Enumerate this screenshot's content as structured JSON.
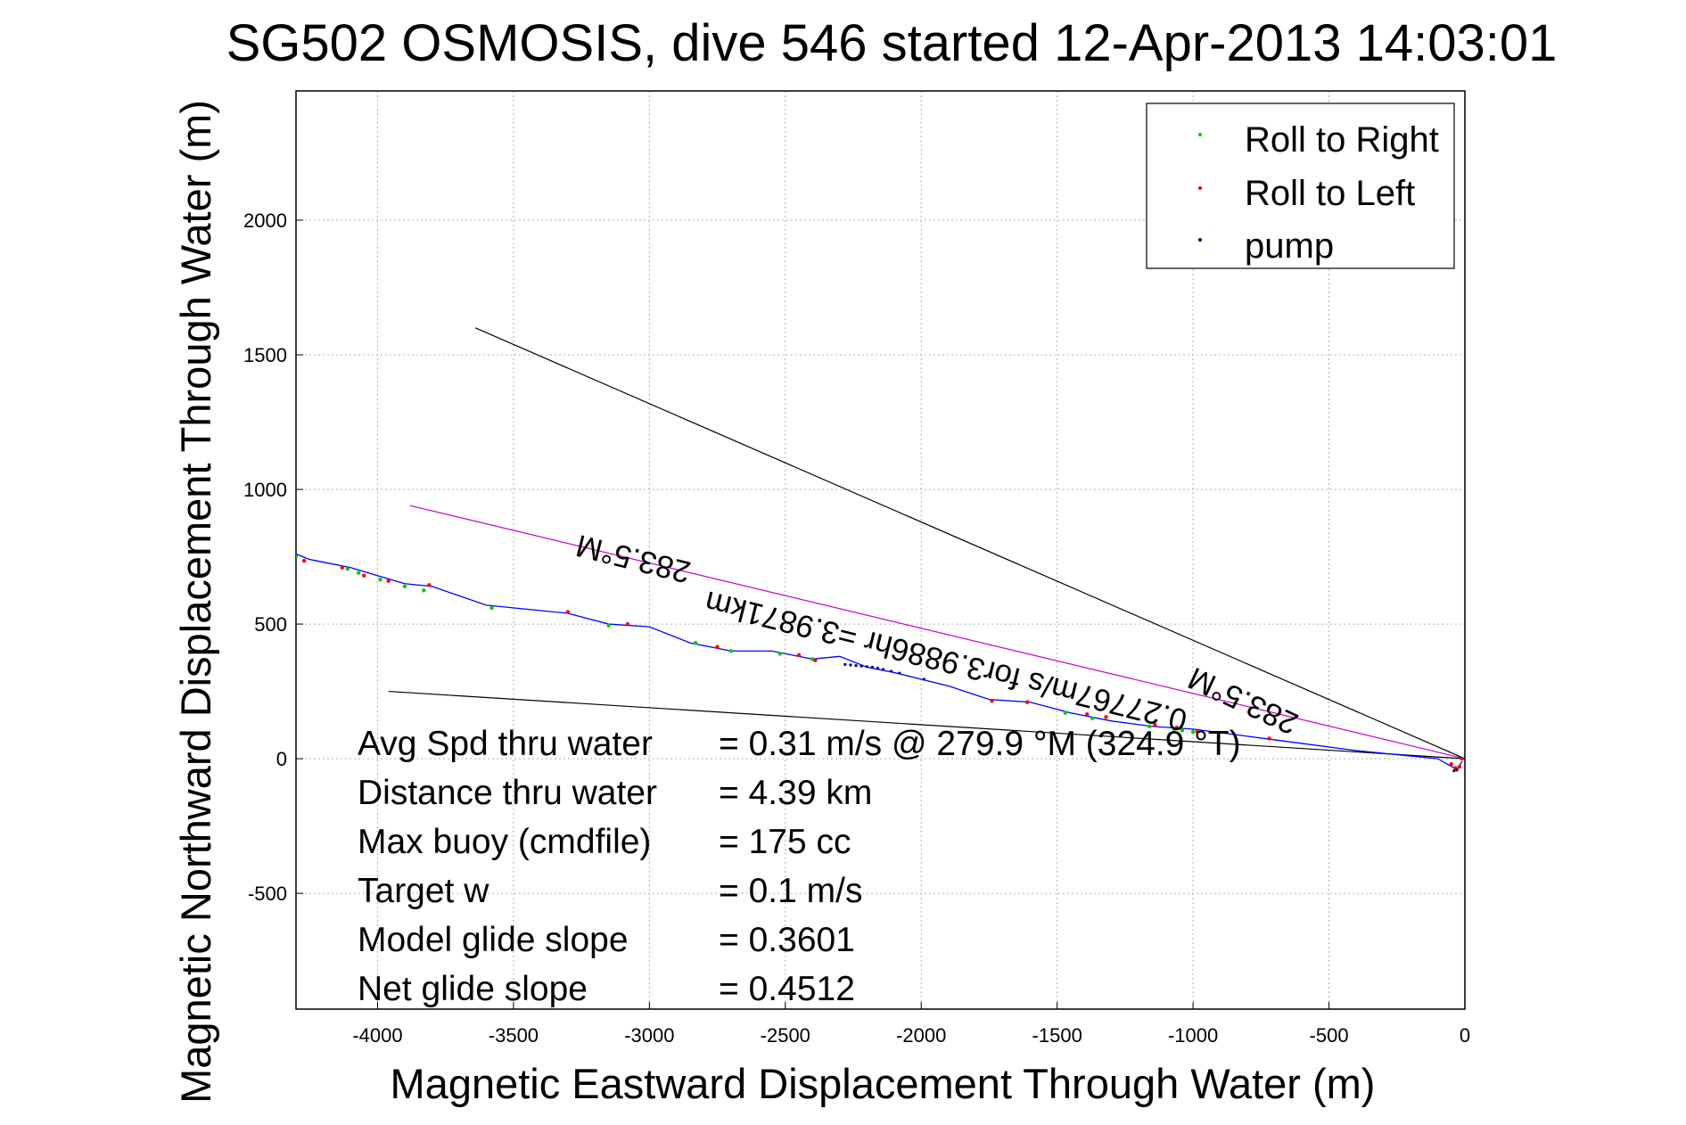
{
  "chart_data": {
    "type": "scatter",
    "title": "SG502 OSMOSIS, dive 546 started 12-Apr-2013 14:03:01",
    "xlabel": "Magnetic Eastward Displacement Through Water (m)",
    "ylabel": "Magnetic Northward Displacement Through Water (m)",
    "xlim": [
      -4300,
      0
    ],
    "ylim": [
      -930,
      2480
    ],
    "xticks": [
      -4000,
      -3500,
      -3000,
      -2500,
      -2000,
      -1500,
      -1000,
      -500,
      0
    ],
    "yticks": [
      -500,
      0,
      500,
      1000,
      1500,
      2000
    ],
    "grid": true,
    "legend_position": "top-right",
    "legend": [
      "Roll to Right",
      "Roll to Left",
      "pump"
    ],
    "colors": {
      "track": "#0000ff",
      "roll_right": "#00cc00",
      "roll_left": "#ff0000",
      "pump": "#000080",
      "heading_line": "#cc00cc",
      "cone_line": "#000000",
      "grid": "#b0b0b0"
    },
    "series": [
      {
        "name": "track",
        "x": [
          -4300,
          -4250,
          -4100,
          -4000,
          -3900,
          -3800,
          -3600,
          -3300,
          -3150,
          -3000,
          -2850,
          -2700,
          -2550,
          -2400,
          -2300,
          -2200,
          -2100,
          -1900,
          -1750,
          -1600,
          -1450,
          -1300,
          -1150,
          -1000,
          -700,
          -400,
          -100,
          -30,
          -10
        ],
        "y": [
          760,
          740,
          710,
          680,
          650,
          640,
          570,
          540,
          500,
          490,
          430,
          400,
          400,
          370,
          380,
          340,
          320,
          270,
          220,
          210,
          170,
          140,
          120,
          110,
          70,
          30,
          0,
          -40,
          -10
        ]
      },
      {
        "name": "Roll to Right",
        "x": [
          -4300,
          -4110,
          -4070,
          -3990,
          -3900,
          -3830,
          -3580,
          -3150,
          -2830,
          -2700,
          -2520,
          -2400,
          -1470,
          -1370,
          -1160,
          -1070,
          -1040,
          -1000,
          -30
        ],
        "y": [
          750,
          705,
          690,
          665,
          640,
          625,
          560,
          495,
          430,
          400,
          390,
          370,
          170,
          150,
          120,
          110,
          105,
          100,
          -40
        ]
      },
      {
        "name": "Roll to Left",
        "x": [
          -4270,
          -4130,
          -4050,
          -3960,
          -3810,
          -3300,
          -3080,
          -2750,
          -2450,
          -2390,
          -1740,
          -1610,
          -1390,
          -1320,
          -1140,
          -1060,
          -985,
          -720,
          -50,
          -35,
          -20,
          -10
        ],
        "y": [
          735,
          710,
          680,
          660,
          645,
          545,
          500,
          415,
          385,
          365,
          215,
          210,
          165,
          155,
          125,
          115,
          100,
          75,
          -20,
          -35,
          -30,
          0
        ]
      },
      {
        "name": "pump",
        "x": [
          -2280,
          -2260,
          -2240,
          -2220,
          -2200,
          -2180,
          -2160,
          -2140,
          -2110,
          -2080,
          -1990,
          -40,
          -30
        ],
        "y": [
          350,
          348,
          346,
          344,
          342,
          340,
          336,
          332,
          325,
          318,
          295,
          -45,
          -42
        ]
      }
    ],
    "lines": [
      {
        "name": "heading",
        "x": [
          -3880,
          0
        ],
        "y": [
          940,
          0
        ]
      },
      {
        "name": "cone-upper",
        "x": [
          -3640,
          0
        ],
        "y": [
          1600,
          0
        ]
      },
      {
        "name": "cone-lower",
        "x": [
          -3960,
          0
        ],
        "y": [
          250,
          0
        ]
      }
    ],
    "annotations": [
      {
        "text": "283.5°M",
        "x": -3050,
        "y": 780,
        "rotation": 194
      },
      {
        "text": "0.27767m/s for3.9886hr =3.9871km",
        "x": -1900,
        "y": 400,
        "rotation": 194
      },
      {
        "text": "283.5°M",
        "x": -800,
        "y": 250,
        "rotation": 205
      }
    ],
    "stats": [
      {
        "label": "Avg Spd thru water",
        "value": "=  0.31 m/s @ 279.9 °M (324.9 °T)"
      },
      {
        "label": "Distance thru water",
        "value": "=  4.39 km"
      },
      {
        "label": "Max buoy (cmdfile)",
        "value": "= 175 cc"
      },
      {
        "label": "Target w",
        "value": "= 0.1 m/s"
      },
      {
        "label": "Model glide slope",
        "value": "= 0.3601"
      },
      {
        "label": "Net glide slope",
        "value": "= 0.4512"
      }
    ]
  }
}
